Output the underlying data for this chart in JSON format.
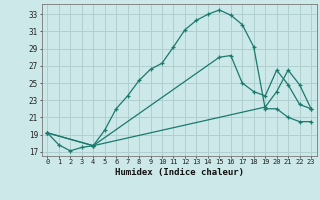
{
  "xlabel": "Humidex (Indice chaleur)",
  "bg_color": "#cce8e8",
  "grid_color": "#b0cfcf",
  "line_color": "#1a7a6e",
  "xlim": [
    -0.5,
    23.5
  ],
  "ylim": [
    16.5,
    34.2
  ],
  "xticks": [
    0,
    1,
    2,
    3,
    4,
    5,
    6,
    7,
    8,
    9,
    10,
    11,
    12,
    13,
    14,
    15,
    16,
    17,
    18,
    19,
    20,
    21,
    22,
    23
  ],
  "yticks": [
    17,
    19,
    21,
    23,
    25,
    27,
    29,
    31,
    33
  ],
  "line1_x": [
    0,
    1,
    2,
    3,
    4,
    5,
    6,
    7,
    8,
    9,
    10,
    11,
    12,
    13,
    14,
    15,
    16,
    17,
    18,
    19,
    20,
    21,
    22,
    23
  ],
  "line1_y": [
    19.2,
    17.8,
    17.1,
    17.5,
    17.7,
    19.5,
    22.0,
    23.5,
    25.3,
    26.6,
    27.3,
    29.2,
    31.2,
    32.3,
    33.0,
    33.5,
    32.9,
    31.8,
    29.2,
    22.0,
    22.0,
    21.0,
    20.5,
    20.5
  ],
  "line2_x": [
    0,
    4,
    15,
    16,
    17,
    18,
    19,
    20,
    21,
    22,
    23
  ],
  "line2_y": [
    19.2,
    17.7,
    28.0,
    28.2,
    25.0,
    24.0,
    23.5,
    26.5,
    24.8,
    22.5,
    22.0
  ],
  "line3_x": [
    0,
    4,
    19,
    20,
    21,
    22,
    23
  ],
  "line3_y": [
    19.2,
    17.7,
    22.2,
    24.0,
    26.5,
    24.8,
    22.0
  ]
}
